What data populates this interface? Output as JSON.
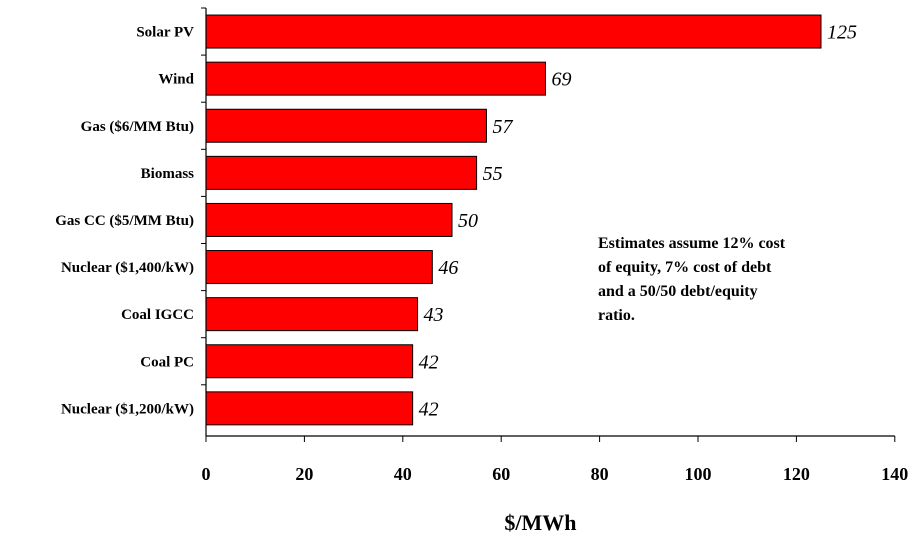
{
  "chart_data": {
    "type": "bar",
    "orientation": "horizontal",
    "categories": [
      "Solar PV",
      "Wind",
      "Gas ($6/MM Btu)",
      "Biomass",
      "Gas CC ($5/MM Btu)",
      "Nuclear ($1,400/kW)",
      "Coal IGCC",
      "Coal PC",
      "Nuclear ($1,200/kW)"
    ],
    "values": [
      125,
      69,
      57,
      55,
      50,
      46,
      43,
      42,
      42
    ],
    "value_labels": [
      "125",
      "69",
      "57",
      "55",
      "50",
      "46",
      "43",
      "42",
      "42"
    ],
    "xlabel": "$/MWh",
    "xlim": [
      0,
      140
    ],
    "xticks": [
      "0",
      "20",
      "40",
      "60",
      "80",
      "100",
      "120",
      "140"
    ],
    "bar_color": "#ff0000",
    "grid": false,
    "legend": "none"
  },
  "annotation": {
    "lines": [
      "Estimates assume 12% cost",
      "of equity, 7% cost of debt",
      "and a 50/50 debt/equity",
      "ratio."
    ]
  }
}
